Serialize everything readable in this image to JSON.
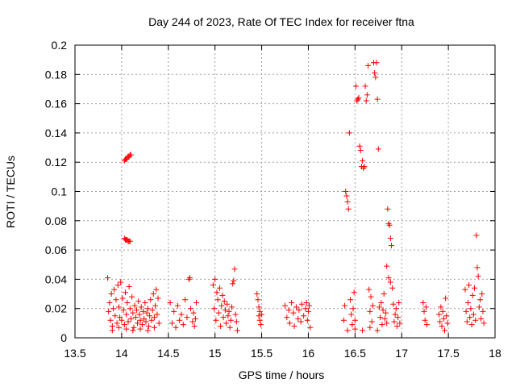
{
  "chart_data": {
    "type": "scatter",
    "title": "Day 244 of 2023, Rate Of TEC Index for receiver ftna",
    "xlabel": "GPS time / hours",
    "ylabel": "ROTI / TECUs",
    "xlim": [
      13.5,
      18
    ],
    "ylim": [
      0,
      0.2
    ],
    "x_ticks": [
      "13.5",
      "14",
      "14.5",
      "15",
      "15.5",
      "16",
      "16.5",
      "17",
      "17.5",
      "18"
    ],
    "y_ticks": [
      "0",
      "0.02",
      "0.04",
      "0.06",
      "0.08",
      "0.1",
      "0.12",
      "0.14",
      "0.16",
      "0.18",
      "0.2"
    ],
    "grid": true,
    "marker": "plus",
    "color": "#ff0000",
    "points": [
      [
        13.85,
        0.041
      ],
      [
        13.86,
        0.018
      ],
      [
        13.87,
        0.024
      ],
      [
        13.88,
        0.012
      ],
      [
        13.89,
        0.03
      ],
      [
        13.9,
        0.008
      ],
      [
        13.91,
        0.02
      ],
      [
        13.92,
        0.033
      ],
      [
        13.93,
        0.015
      ],
      [
        13.94,
        0.026
      ],
      [
        13.95,
        0.01
      ],
      [
        13.96,
        0.036
      ],
      [
        13.97,
        0.021
      ],
      [
        13.98,
        0.014
      ],
      [
        13.99,
        0.038
      ],
      [
        14.0,
        0.012
      ],
      [
        14.01,
        0.027
      ],
      [
        14.02,
        0.019
      ],
      [
        14.03,
        0.009
      ],
      [
        14.04,
        0.031
      ],
      [
        14.05,
        0.016
      ],
      [
        14.06,
        0.024
      ],
      [
        14.07,
        0.011
      ],
      [
        14.08,
        0.035
      ],
      [
        14.09,
        0.02
      ],
      [
        14.1,
        0.013
      ],
      [
        14.11,
        0.028
      ],
      [
        14.12,
        0.017
      ],
      [
        14.13,
        0.007
      ],
      [
        14.14,
        0.022
      ],
      [
        14.15,
        0.014
      ],
      [
        14.16,
        0.019
      ],
      [
        14.17,
        0.01
      ],
      [
        14.18,
        0.025
      ],
      [
        14.19,
        0.016
      ],
      [
        14.2,
        0.012
      ],
      [
        14.21,
        0.021
      ],
      [
        14.22,
        0.009
      ],
      [
        14.23,
        0.018
      ],
      [
        14.24,
        0.013
      ],
      [
        14.25,
        0.024
      ],
      [
        14.26,
        0.011
      ],
      [
        14.27,
        0.017
      ],
      [
        14.28,
        0.02
      ],
      [
        14.29,
        0.008
      ],
      [
        14.3,
        0.015
      ],
      [
        14.31,
        0.026
      ],
      [
        14.32,
        0.012
      ],
      [
        14.33,
        0.019
      ],
      [
        14.34,
        0.03
      ],
      [
        14.35,
        0.014
      ],
      [
        14.36,
        0.022
      ],
      [
        14.37,
        0.033
      ],
      [
        14.38,
        0.016
      ],
      [
        14.39,
        0.027
      ],
      [
        14.4,
        0.01
      ],
      [
        13.9,
        0.005
      ],
      [
        13.97,
        0.007
      ],
      [
        14.05,
        0.006
      ],
      [
        14.12,
        0.005
      ],
      [
        14.2,
        0.006
      ],
      [
        14.28,
        0.005
      ],
      [
        14.35,
        0.007
      ],
      [
        14.03,
        0.121
      ],
      [
        14.04,
        0.122
      ],
      [
        14.05,
        0.122
      ],
      [
        14.06,
        0.123
      ],
      [
        14.07,
        0.124
      ],
      [
        14.08,
        0.124
      ],
      [
        14.09,
        0.125
      ],
      [
        14.1,
        0.125
      ],
      [
        14.03,
        0.068
      ],
      [
        14.04,
        0.067
      ],
      [
        14.05,
        0.067
      ],
      [
        14.06,
        0.067
      ],
      [
        14.07,
        0.066
      ],
      [
        14.08,
        0.066
      ],
      [
        14.09,
        0.066
      ],
      [
        14.52,
        0.024
      ],
      [
        14.54,
        0.01
      ],
      [
        14.56,
        0.018
      ],
      [
        14.58,
        0.007
      ],
      [
        14.6,
        0.022
      ],
      [
        14.62,
        0.012
      ],
      [
        14.64,
        0.016
      ],
      [
        14.66,
        0.009
      ],
      [
        14.68,
        0.026
      ],
      [
        14.7,
        0.014
      ],
      [
        14.72,
        0.04
      ],
      [
        14.73,
        0.041
      ],
      [
        14.74,
        0.02
      ],
      [
        14.76,
        0.011
      ],
      [
        14.77,
        0.017
      ],
      [
        14.78,
        0.008
      ],
      [
        14.79,
        0.013
      ],
      [
        14.8,
        0.024
      ],
      [
        14.98,
        0.036
      ],
      [
        14.99,
        0.02
      ],
      [
        15.0,
        0.04
      ],
      [
        15.01,
        0.012
      ],
      [
        15.02,
        0.031
      ],
      [
        15.03,
        0.026
      ],
      [
        15.04,
        0.017
      ],
      [
        15.05,
        0.034
      ],
      [
        15.06,
        0.008
      ],
      [
        15.07,
        0.022
      ],
      [
        15.08,
        0.029
      ],
      [
        15.09,
        0.014
      ],
      [
        15.1,
        0.025
      ],
      [
        15.11,
        0.019
      ],
      [
        15.12,
        0.01
      ],
      [
        15.13,
        0.023
      ],
      [
        15.14,
        0.015
      ],
      [
        15.15,
        0.018
      ],
      [
        15.16,
        0.007
      ],
      [
        15.17,
        0.012
      ],
      [
        15.18,
        0.021
      ],
      [
        15.19,
        0.037
      ],
      [
        15.2,
        0.039
      ],
      [
        15.21,
        0.047
      ],
      [
        15.22,
        0.016
      ],
      [
        15.23,
        0.011
      ],
      [
        15.24,
        0.005
      ],
      [
        15.45,
        0.03
      ],
      [
        15.46,
        0.026
      ],
      [
        15.47,
        0.021
      ],
      [
        15.47,
        0.015
      ],
      [
        15.48,
        0.018
      ],
      [
        15.48,
        0.012
      ],
      [
        15.49,
        0.009
      ],
      [
        15.5,
        0.016
      ],
      [
        15.75,
        0.022
      ],
      [
        15.77,
        0.014
      ],
      [
        15.79,
        0.019
      ],
      [
        15.8,
        0.01
      ],
      [
        15.82,
        0.024
      ],
      [
        15.84,
        0.017
      ],
      [
        15.85,
        0.008
      ],
      [
        15.87,
        0.021
      ],
      [
        15.89,
        0.013
      ],
      [
        15.9,
        0.019
      ],
      [
        15.92,
        0.011
      ],
      [
        15.93,
        0.023
      ],
      [
        15.95,
        0.015
      ],
      [
        15.97,
        0.02
      ],
      [
        15.98,
        0.024
      ],
      [
        15.99,
        0.012
      ],
      [
        16.0,
        0.018
      ],
      [
        16.01,
        0.022
      ],
      [
        16.02,
        0.007
      ],
      [
        16.38,
        0.012
      ],
      [
        16.39,
        0.022
      ],
      [
        16.4,
        0.1
      ],
      [
        16.41,
        0.097
      ],
      [
        16.42,
        0.093
      ],
      [
        16.43,
        0.088
      ],
      [
        16.44,
        0.14
      ],
      [
        16.45,
        0.026
      ],
      [
        16.46,
        0.016
      ],
      [
        16.47,
        0.009
      ],
      [
        16.48,
        0.02
      ],
      [
        16.49,
        0.031
      ],
      [
        16.5,
        0.012
      ],
      [
        16.51,
        0.172
      ],
      [
        16.52,
        0.162
      ],
      [
        16.53,
        0.163
      ],
      [
        16.54,
        0.164
      ],
      [
        16.55,
        0.131
      ],
      [
        16.56,
        0.128
      ],
      [
        16.57,
        0.117
      ],
      [
        16.58,
        0.121
      ],
      [
        16.59,
        0.116
      ],
      [
        16.6,
        0.117
      ],
      [
        16.61,
        0.172
      ],
      [
        16.62,
        0.162
      ],
      [
        16.63,
        0.166
      ],
      [
        16.64,
        0.186
      ],
      [
        16.65,
        0.033
      ],
      [
        16.66,
        0.018
      ],
      [
        16.67,
        0.028
      ],
      [
        16.68,
        0.011
      ],
      [
        16.69,
        0.022
      ],
      [
        16.7,
        0.188
      ],
      [
        16.71,
        0.181
      ],
      [
        16.72,
        0.178
      ],
      [
        16.73,
        0.188
      ],
      [
        16.74,
        0.163
      ],
      [
        16.75,
        0.129
      ],
      [
        16.76,
        0.021
      ],
      [
        16.77,
        0.014
      ],
      [
        16.78,
        0.024
      ],
      [
        16.79,
        0.009
      ],
      [
        16.8,
        0.019
      ],
      [
        16.81,
        0.03
      ],
      [
        16.82,
        0.013
      ],
      [
        16.83,
        0.017
      ],
      [
        16.84,
        0.01
      ],
      [
        16.85,
        0.088
      ],
      [
        16.86,
        0.078
      ],
      [
        16.87,
        0.077
      ],
      [
        16.88,
        0.068
      ],
      [
        16.89,
        0.063
      ],
      [
        16.84,
        0.049
      ],
      [
        16.86,
        0.041
      ],
      [
        16.88,
        0.038
      ],
      [
        16.9,
        0.034
      ],
      [
        16.91,
        0.023
      ],
      [
        16.92,
        0.011
      ],
      [
        16.93,
        0.016
      ],
      [
        16.94,
        0.02
      ],
      [
        16.95,
        0.008
      ],
      [
        16.96,
        0.014
      ],
      [
        16.97,
        0.024
      ],
      [
        16.98,
        0.01
      ],
      [
        16.42,
        0.005
      ],
      [
        16.5,
        0.006
      ],
      [
        16.58,
        0.005
      ],
      [
        16.66,
        0.007
      ],
      [
        16.74,
        0.005
      ],
      [
        17.23,
        0.024
      ],
      [
        17.24,
        0.018
      ],
      [
        17.25,
        0.012
      ],
      [
        17.26,
        0.021
      ],
      [
        17.27,
        0.009
      ],
      [
        17.4,
        0.016
      ],
      [
        17.41,
        0.011
      ],
      [
        17.42,
        0.021
      ],
      [
        17.43,
        0.008
      ],
      [
        17.44,
        0.018
      ],
      [
        17.45,
        0.013
      ],
      [
        17.46,
        0.005
      ],
      [
        17.47,
        0.027
      ],
      [
        17.48,
        0.015
      ],
      [
        17.49,
        0.01
      ],
      [
        17.68,
        0.033
      ],
      [
        17.69,
        0.018
      ],
      [
        17.7,
        0.011
      ],
      [
        17.71,
        0.024
      ],
      [
        17.72,
        0.036
      ],
      [
        17.73,
        0.014
      ],
      [
        17.74,
        0.02
      ],
      [
        17.75,
        0.009
      ],
      [
        17.76,
        0.029
      ],
      [
        17.77,
        0.016
      ],
      [
        17.78,
        0.034
      ],
      [
        17.79,
        0.012
      ],
      [
        17.8,
        0.07
      ],
      [
        17.81,
        0.048
      ],
      [
        17.82,
        0.042
      ],
      [
        17.83,
        0.021
      ],
      [
        17.84,
        0.026
      ],
      [
        17.85,
        0.013
      ],
      [
        17.86,
        0.03
      ],
      [
        17.87,
        0.018
      ],
      [
        17.88,
        0.01
      ]
    ]
  }
}
